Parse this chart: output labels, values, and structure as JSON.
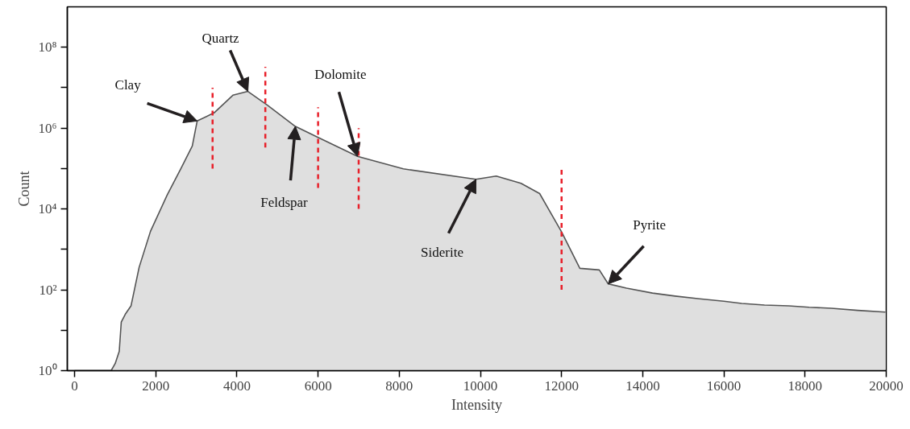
{
  "chart_data": {
    "type": "area",
    "xlabel": "Intensity",
    "ylabel": "Count",
    "log": "y",
    "grid": false,
    "xlim": [
      -180,
      20000
    ],
    "ylim": [
      1,
      1000000000
    ],
    "xticks": [
      0,
      2000,
      4000,
      6000,
      8000,
      10000,
      12000,
      14000,
      16000,
      18000,
      20000
    ],
    "yticks": [
      {
        "value": 1,
        "label": "10⁰"
      },
      {
        "value": 10,
        "label": null
      },
      {
        "value": 100,
        "label": "10²"
      },
      {
        "value": 1000,
        "label": null
      },
      {
        "value": 10000,
        "label": "10⁴"
      },
      {
        "value": 100000,
        "label": null
      },
      {
        "value": 1000000,
        "label": "10⁶"
      },
      {
        "value": 10000000,
        "label": null
      },
      {
        "value": 100000000,
        "label": "10⁸"
      }
    ],
    "series": [
      {
        "color": "#dfdfdf",
        "x": [
          0,
          900,
          1000,
          1100,
          1150,
          1250,
          1390,
          1590,
          1870,
          2280,
          2620,
          2900,
          3020,
          3440,
          3900,
          4270,
          4750,
          5440,
          5980,
          6970,
          8100,
          9890,
          10390,
          11000,
          11460,
          12000,
          12450,
          12930,
          13150,
          13600,
          14240,
          14800,
          15400,
          16000,
          16440,
          17000,
          17600,
          18100,
          18650,
          19300,
          19980
        ],
        "values": [
          1,
          1,
          1.5,
          3,
          16,
          25,
          40,
          360,
          2800,
          22000,
          100000,
          360000,
          1500000,
          2400000,
          6500000,
          8100000,
          3700000,
          1100000,
          600000,
          200000,
          98000,
          54000,
          65000,
          43000,
          24000,
          2700,
          340,
          310,
          140,
          110,
          83,
          70,
          60,
          52,
          46,
          42,
          40,
          37,
          35,
          31,
          28
        ]
      },
      {
        "type": "line",
        "color": "#e8202a",
        "line_style": "dashed",
        "x": [
          3400,
          3400
        ],
        "values": [
          100000,
          10000000
        ]
      },
      {
        "type": "line",
        "color": "#e8202a",
        "line_style": "dashed",
        "x": [
          4700,
          4700
        ],
        "values": [
          330000,
          33000000
        ]
      },
      {
        "type": "line",
        "color": "#e8202a",
        "line_style": "dashed",
        "x": [
          6000,
          6000
        ],
        "values": [
          33000,
          3300000
        ]
      },
      {
        "type": "line",
        "color": "#e8202a",
        "line_style": "dashed",
        "x": [
          7000,
          7000
        ],
        "values": [
          10000,
          1000000
        ]
      },
      {
        "type": "line",
        "color": "#e8202a",
        "line_style": "dashed",
        "x": [
          12000,
          12000
        ],
        "values": [
          100,
          100000
        ]
      }
    ],
    "annotations": [
      {
        "text": "Clay",
        "x": 3020,
        "y": 1500000
      },
      {
        "text": "Quartz",
        "x": 4270,
        "y": 8100000
      },
      {
        "text": "Feldspar",
        "x": 5440,
        "y": 1100000
      },
      {
        "text": "Dolomite",
        "x": 6970,
        "y": 200000
      },
      {
        "text": "Siderite",
        "x": 9890,
        "y": 54000
      },
      {
        "text": "Pyrite",
        "x": 13150,
        "y": 140
      }
    ]
  }
}
